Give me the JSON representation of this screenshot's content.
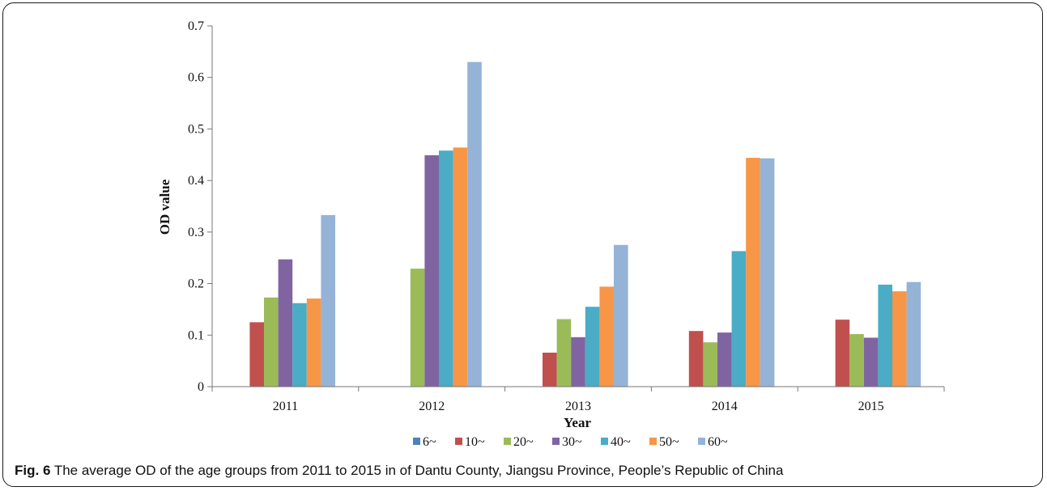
{
  "caption": {
    "label": "Fig. 6",
    "text": "The average OD of the age groups from 2011 to 2015 in of Dantu County, Jiangsu Province, People’s Republic of China"
  },
  "chart_data": {
    "type": "bar",
    "categories": [
      "2011",
      "2012",
      "2013",
      "2014",
      "2015"
    ],
    "xlabel": "Year",
    "ylabel": "OD value",
    "ylim": [
      0,
      0.7
    ],
    "yticks": [
      "0",
      "0.1",
      "0.2",
      "0.3",
      "0.4",
      "0.5",
      "0.6",
      "0.7"
    ],
    "legend_position": "bottom",
    "grid": false,
    "series": [
      {
        "name": "6~",
        "color": "#4F81BD",
        "values": [
          0,
          0,
          0,
          0,
          0
        ]
      },
      {
        "name": "10~",
        "color": "#C0504D",
        "values": [
          0.125,
          0,
          0.066,
          0.108,
          0.13
        ]
      },
      {
        "name": "20~",
        "color": "#9BBB59",
        "values": [
          0.173,
          0.229,
          0.131,
          0.086,
          0.102
        ]
      },
      {
        "name": "30~",
        "color": "#8064A2",
        "values": [
          0.247,
          0.449,
          0.096,
          0.105,
          0.095
        ]
      },
      {
        "name": "40~",
        "color": "#4BACC6",
        "values": [
          0.162,
          0.458,
          0.155,
          0.263,
          0.198
        ]
      },
      {
        "name": "50~",
        "color": "#F79646",
        "values": [
          0.171,
          0.464,
          0.194,
          0.444,
          0.185
        ]
      },
      {
        "name": "60~",
        "color": "#95B3D7",
        "values": [
          0.333,
          0.63,
          0.275,
          0.443,
          0.203
        ]
      }
    ]
  }
}
